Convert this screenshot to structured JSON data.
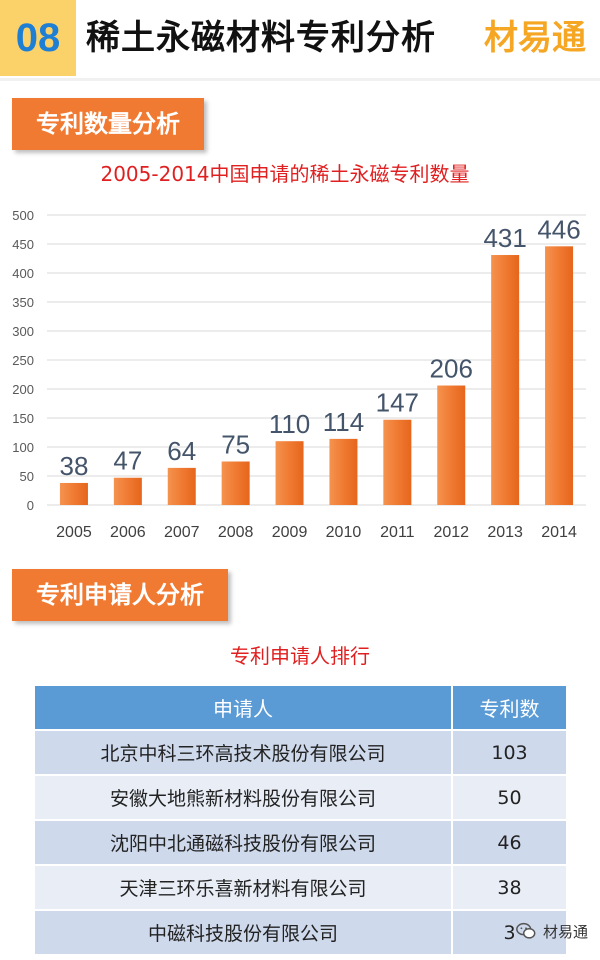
{
  "header": {
    "number": "08",
    "title": "稀土永磁材料专利分析",
    "brand": "材易通"
  },
  "section1": {
    "label": "专利数量分析"
  },
  "section2": {
    "label": "专利申请人分析"
  },
  "chart_data": {
    "type": "bar",
    "title": "2005-2014中国申请的稀土永磁专利数量",
    "categories": [
      "2005",
      "2006",
      "2007",
      "2008",
      "2009",
      "2010",
      "2011",
      "2012",
      "2013",
      "2014"
    ],
    "values": [
      38,
      47,
      64,
      75,
      110,
      114,
      147,
      206,
      431,
      446
    ],
    "ylim": [
      0,
      500
    ],
    "yticks": [
      0,
      50,
      100,
      150,
      200,
      250,
      300,
      350,
      400,
      450,
      500
    ],
    "xlabel": "",
    "ylabel": "",
    "grid": true,
    "bar_color": "#f07a32",
    "label_color": "#44546a"
  },
  "table": {
    "title": "专利申请人排行",
    "headers": [
      "申请人",
      "专利数"
    ],
    "rows": [
      {
        "name": "北京中科三环高技术股份有限公司",
        "count": "103"
      },
      {
        "name": "安徽大地熊新材料股份有限公司",
        "count": "50"
      },
      {
        "name": "沈阳中北通磁科技股份有限公司",
        "count": "46"
      },
      {
        "name": "天津三环乐喜新材料有限公司",
        "count": "38"
      },
      {
        "name": "中磁科技股份有限公司",
        "count": "3"
      }
    ]
  },
  "watermark": {
    "icon": "wechat-icon",
    "text": "材易通"
  }
}
